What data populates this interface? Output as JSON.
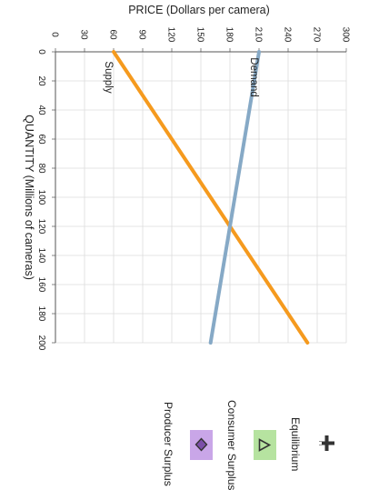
{
  "chart_data": {
    "type": "line",
    "title": "",
    "ylabel": "PRICE (Dollars per camera)",
    "xlabel": "QUANTITY (Millions of cameras)",
    "price_ticks": [
      "0",
      "30",
      "60",
      "90",
      "120",
      "150",
      "180",
      "210",
      "240",
      "270",
      "300"
    ],
    "quantity_ticks": [
      "0",
      "20",
      "40",
      "60",
      "80",
      "100",
      "120",
      "140",
      "160",
      "180",
      "200"
    ],
    "xlim": [
      0,
      200
    ],
    "ylim": [
      0,
      300
    ],
    "grid": true,
    "series": [
      {
        "name": "Supply",
        "color": "#f59a1e",
        "x": [
          0,
          200
        ],
        "y": [
          60,
          260
        ]
      },
      {
        "name": "Demand",
        "color": "#86a9c6",
        "x": [
          0,
          200
        ],
        "y": [
          210,
          160
        ]
      }
    ]
  },
  "tools": {
    "equilibrium": {
      "label": "Equilibrium",
      "color": "#b6e3a0",
      "icon": "triangle-icon"
    },
    "consumer_surplus": {
      "label": "Consumer Surplus",
      "color": "#c9a6e8",
      "icon": "diamond-icon"
    },
    "producer_surplus": {
      "label": "Producer Surplus"
    },
    "move": {
      "icon": "move-cross-icon"
    }
  }
}
